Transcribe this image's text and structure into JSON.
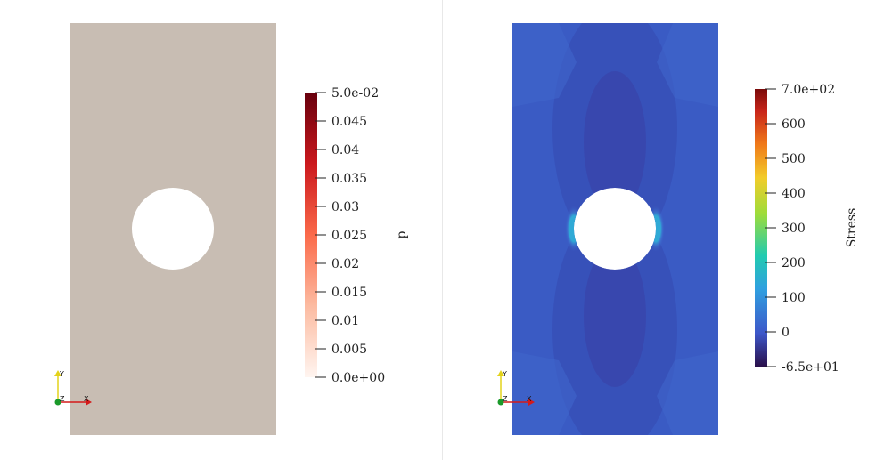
{
  "left_view": {
    "colorbar": {
      "title": "p",
      "ticks": [
        "5.0e-02",
        "0.045",
        "0.04",
        "0.035",
        "0.03",
        "0.025",
        "0.02",
        "0.015",
        "0.01",
        "0.005",
        "0.0e+00"
      ],
      "colormap": [
        "#fff5f0",
        "#fcbba1",
        "#fb6a4a",
        "#cb181d",
        "#67000d"
      ]
    },
    "plate_color": "#c8bdb3",
    "axes": {
      "y": "Y",
      "z": "Z",
      "x": "X"
    }
  },
  "right_view": {
    "colorbar": {
      "title": "Stress",
      "ticks": [
        "7.0e+02",
        "600",
        "500",
        "400",
        "300",
        "200",
        "100",
        "0",
        "-6.5e+01"
      ],
      "colormap": [
        "#2a0f4a",
        "#3d57c9",
        "#2fa0e0",
        "#22cbb0",
        "#9ddc3a",
        "#f2cc2a",
        "#f07a1a",
        "#c8251a",
        "#7a0a0a"
      ]
    },
    "plate_color": "#3a5bc4",
    "axes": {
      "y": "Y",
      "z": "Z",
      "x": "X"
    }
  }
}
